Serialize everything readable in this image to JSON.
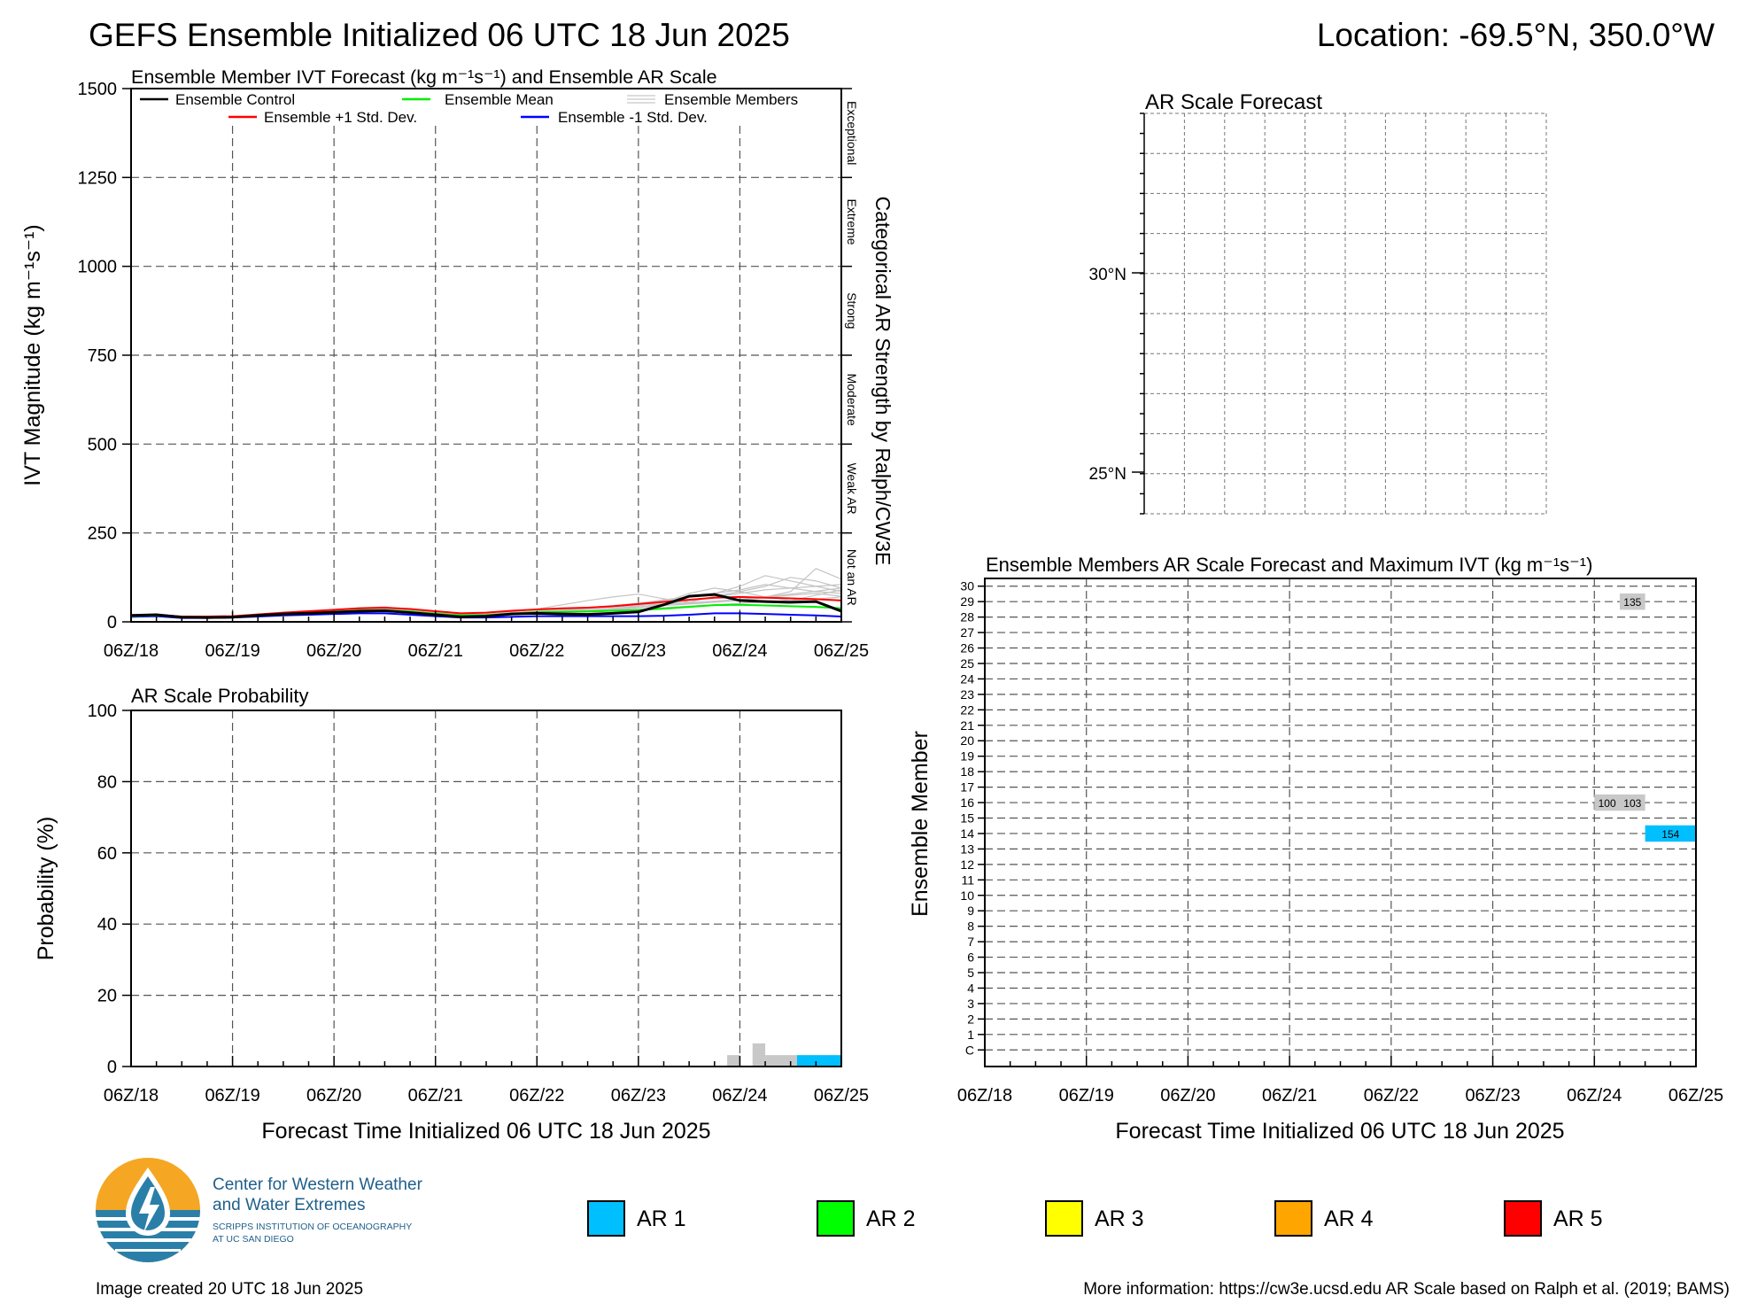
{
  "header": {
    "title": "GEFS Ensemble Initialized 06 UTC 18 Jun 2025",
    "location": "Location: -69.5°N, 350.0°W"
  },
  "x_tick_labels": [
    "06Z/18",
    "06Z/19",
    "06Z/20",
    "06Z/21",
    "06Z/22",
    "06Z/23",
    "06Z/24",
    "06Z/25"
  ],
  "forecast_xlabel": "Forecast Time Initialized 06 UTC 18 Jun 2025",
  "ivt_panel": {
    "title": "Ensemble Member IVT Forecast (kg m⁻¹s⁻¹) and Ensemble AR Scale",
    "ylabel": "IVT Magnitude (kg m⁻¹s⁻¹)",
    "right_label": "Categorical AR Strength by Ralph/CW3E",
    "categories": [
      "Not an AR",
      "Weak AR",
      "Moderate",
      "Strong",
      "Extreme",
      "Exceptional"
    ],
    "legend": {
      "control": "Ensemble Control",
      "mean": "Ensemble Mean",
      "members": "Ensemble Members",
      "plus_std": "Ensemble +1 Std. Dev.",
      "minus_std": "Ensemble -1 Std. Dev."
    }
  },
  "prob_panel": {
    "title": "AR Scale Probability",
    "ylabel": "Probability (%)"
  },
  "map_panel": {
    "title": "AR Scale Forecast",
    "lat_labels": [
      "30°N",
      "25°N"
    ]
  },
  "members_panel": {
    "title": "Ensemble Members AR Scale Forecast and Maximum IVT (kg m⁻¹s⁻¹)",
    "ylabel": "Ensemble Member",
    "member_labels": [
      "C",
      "1",
      "2",
      "3",
      "4",
      "5",
      "6",
      "7",
      "8",
      "9",
      "10",
      "11",
      "12",
      "13",
      "14",
      "15",
      "16",
      "17",
      "18",
      "19",
      "20",
      "21",
      "22",
      "23",
      "24",
      "25",
      "26",
      "27",
      "28",
      "29",
      "30"
    ]
  },
  "ar_legend": [
    {
      "label": "AR 1",
      "color": "#00bfff"
    },
    {
      "label": "AR 2",
      "color": "#00ff00"
    },
    {
      "label": "AR 3",
      "color": "#ffff00"
    },
    {
      "label": "AR 4",
      "color": "#ffa500"
    },
    {
      "label": "AR 5",
      "color": "#ff0000"
    }
  ],
  "logo": {
    "line1": "Center for Western Weather",
    "line2": "and Water Extremes",
    "line3": "SCRIPPS INSTITUTION OF OCEANOGRAPHY",
    "line4": "AT UC SAN DIEGO"
  },
  "footer": {
    "created": "Image created 20 UTC 18 Jun 2025",
    "info": "More information: https://cw3e.ucsd.edu AR Scale based on Ralph et al. (2019; BAMS)"
  },
  "chart_data": [
    {
      "type": "line",
      "title": "Ensemble Member IVT Forecast (kg m⁻¹s⁻¹) and Ensemble AR Scale",
      "ylabel": "IVT Magnitude (kg m⁻¹s⁻¹)",
      "ylim": [
        0,
        1500
      ],
      "yticks": [
        0,
        250,
        500,
        750,
        1000,
        1250,
        1500
      ],
      "xlim_hours": [
        0,
        168
      ],
      "x_hours": [
        0,
        6,
        12,
        18,
        24,
        30,
        36,
        42,
        48,
        54,
        60,
        66,
        72,
        78,
        84,
        90,
        96,
        102,
        108,
        114,
        120,
        126,
        132,
        138,
        144,
        150,
        156,
        162,
        168
      ],
      "series": [
        {
          "name": "Ensemble Control",
          "color": "#000000",
          "values": [
            18,
            20,
            13,
            12,
            13,
            18,
            22,
            24,
            27,
            30,
            31,
            26,
            20,
            14,
            16,
            22,
            24,
            22,
            21,
            24,
            28,
            48,
            72,
            77,
            60,
            57,
            55,
            57,
            30
          ]
        },
        {
          "name": "Ensemble Mean",
          "color": "#00ee00",
          "values": [
            16,
            18,
            13,
            13,
            14,
            18,
            22,
            25,
            28,
            32,
            33,
            29,
            23,
            18,
            19,
            23,
            27,
            28,
            29,
            31,
            33,
            37,
            42,
            47,
            48,
            46,
            44,
            42,
            38
          ]
        },
        {
          "name": "Ensemble +1 Std. Dev.",
          "color": "#ff0000",
          "values": [
            18,
            20,
            15,
            15,
            16,
            21,
            26,
            30,
            34,
            38,
            40,
            36,
            30,
            24,
            26,
            31,
            35,
            38,
            40,
            44,
            50,
            56,
            62,
            68,
            70,
            68,
            66,
            64,
            60
          ]
        },
        {
          "name": "Ensemble -1 Std. Dev.",
          "color": "#0000ff",
          "values": [
            14,
            16,
            11,
            11,
            12,
            15,
            18,
            20,
            22,
            24,
            24,
            20,
            16,
            12,
            12,
            14,
            16,
            16,
            16,
            16,
            16,
            17,
            20,
            24,
            24,
            22,
            20,
            18,
            15
          ]
        }
      ],
      "members": [
        [
          15,
          18,
          12,
          12,
          14,
          19,
          24,
          28,
          34,
          40,
          42,
          34,
          26,
          18,
          20,
          28,
          36,
          48,
          60,
          70,
          78,
          65,
          55,
          72,
          85,
          100,
          125,
          115,
          95
        ],
        [
          17,
          19,
          14,
          14,
          15,
          20,
          24,
          27,
          30,
          35,
          38,
          32,
          25,
          19,
          21,
          26,
          30,
          35,
          40,
          46,
          52,
          60,
          70,
          80,
          90,
          105,
          95,
          85,
          80
        ],
        [
          16,
          18,
          13,
          13,
          14,
          17,
          21,
          24,
          27,
          31,
          35,
          30,
          23,
          17,
          18,
          22,
          26,
          30,
          33,
          38,
          45,
          55,
          80,
          95,
          85,
          70,
          60,
          75,
          90
        ],
        [
          14,
          16,
          12,
          12,
          13,
          16,
          20,
          22,
          25,
          28,
          30,
          27,
          21,
          16,
          17,
          20,
          24,
          27,
          30,
          34,
          40,
          46,
          52,
          58,
          64,
          70,
          85,
          150,
          120
        ],
        [
          18,
          20,
          14,
          13,
          14,
          18,
          22,
          25,
          29,
          34,
          37,
          33,
          26,
          20,
          21,
          25,
          28,
          31,
          34,
          38,
          42,
          46,
          50,
          55,
          60,
          68,
          75,
          80,
          72
        ],
        [
          15,
          17,
          12,
          12,
          13,
          17,
          21,
          24,
          28,
          32,
          36,
          31,
          24,
          18,
          19,
          23,
          27,
          32,
          38,
          44,
          52,
          62,
          70,
          80,
          100,
          130,
          115,
          100,
          85
        ],
        [
          16,
          18,
          13,
          13,
          14,
          18,
          23,
          26,
          30,
          34,
          38,
          34,
          27,
          21,
          22,
          26,
          30,
          34,
          38,
          42,
          46,
          50,
          54,
          58,
          62,
          70,
          78,
          86,
          95
        ],
        [
          17,
          19,
          13,
          12,
          13,
          18,
          22,
          25,
          28,
          31,
          34,
          30,
          24,
          18,
          19,
          22,
          25,
          28,
          31,
          35,
          40,
          50,
          60,
          70,
          80,
          90,
          95,
          100,
          105
        ],
        [
          15,
          17,
          12,
          12,
          13,
          17,
          21,
          24,
          27,
          30,
          33,
          29,
          23,
          17,
          18,
          21,
          24,
          27,
          30,
          33,
          36,
          40,
          44,
          48,
          52,
          56,
          60,
          64,
          70
        ]
      ]
    },
    {
      "type": "bar",
      "title": "AR Scale Probability",
      "ylabel": "Probability (%)",
      "ylim": [
        0,
        100
      ],
      "yticks": [
        0,
        20,
        40,
        60,
        80,
        100
      ],
      "xlim_hours": [
        0,
        168
      ],
      "bars": [
        {
          "start_hour": 141,
          "end_hour": 144,
          "value": 3.2,
          "color": "#c8c8c8"
        },
        {
          "start_hour": 147,
          "end_hour": 150,
          "value": 6.5,
          "color": "#c8c8c8"
        },
        {
          "start_hour": 150,
          "end_hour": 157.5,
          "value": 3.2,
          "color": "#c8c8c8"
        },
        {
          "start_hour": 157.5,
          "end_hour": 168,
          "value": 3.2,
          "color": "#00bfff"
        }
      ]
    },
    {
      "type": "heatmap",
      "title": "Ensemble Members AR Scale Forecast and Maximum IVT (kg m⁻¹s⁻¹)",
      "ylabel": "Ensemble Member",
      "xlim_hours": [
        0,
        168
      ],
      "cells": [
        {
          "member": 29,
          "start_hour": 150,
          "end_hour": 156,
          "color": "#c8c8c8",
          "label": "135"
        },
        {
          "member": 16,
          "start_hour": 144,
          "end_hour": 150,
          "color": "#c8c8c8",
          "label": "100"
        },
        {
          "member": 16,
          "start_hour": 150,
          "end_hour": 156,
          "color": "#c8c8c8",
          "label": "103"
        },
        {
          "member": 14,
          "start_hour": 156,
          "end_hour": 168,
          "color": "#00bfff",
          "label": "154"
        }
      ]
    }
  ]
}
